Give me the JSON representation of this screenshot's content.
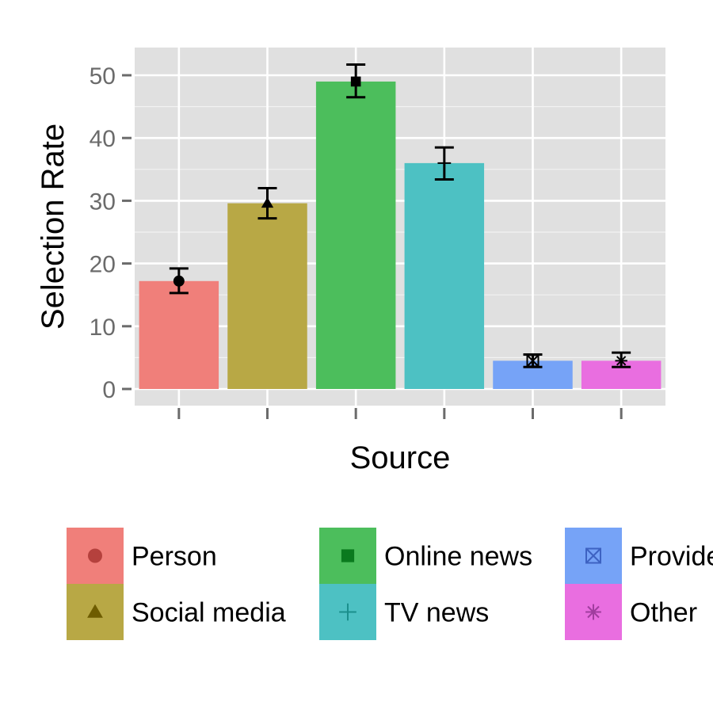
{
  "chart_data": {
    "type": "bar",
    "xlabel": "Source",
    "ylabel": "Selection Rate",
    "ylim": [
      0,
      53.5
    ],
    "y_ticks": [
      0,
      10,
      20,
      30,
      40,
      50
    ],
    "grid": true,
    "legend_position": "bottom",
    "categories": [
      "Person",
      "Social media",
      "Online news",
      "TV news",
      "Provider",
      "Other"
    ],
    "values": [
      17.2,
      29.6,
      49.0,
      36.0,
      4.5,
      4.5
    ],
    "error_low": [
      15.3,
      27.2,
      46.5,
      33.4,
      3.5,
      3.5
    ],
    "error_high": [
      19.2,
      32.0,
      51.7,
      38.5,
      5.5,
      5.8
    ],
    "colors": [
      "#F07F7A",
      "#B8A845",
      "#4CBE5C",
      "#4DC1C3",
      "#76A3F7",
      "#E96EE0"
    ],
    "marker_colors": [
      "#B5413D",
      "#6E5C00",
      "#0A7A1E",
      "#1A8F8C",
      "#3D62C2",
      "#A03D9E"
    ],
    "markers": [
      "circle",
      "triangle",
      "square",
      "plus",
      "boxed-x",
      "asterisk"
    ]
  }
}
